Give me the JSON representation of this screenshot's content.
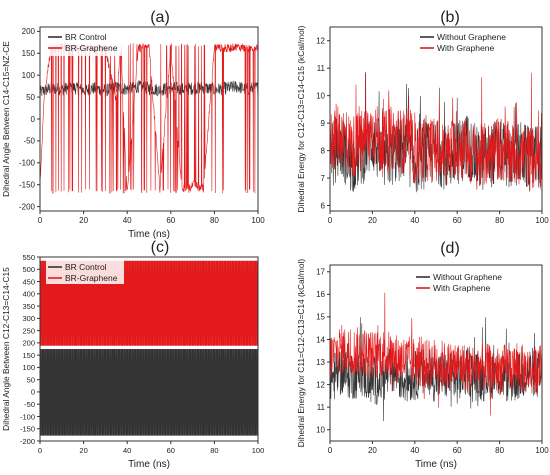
{
  "colors": {
    "black_series": "#333333",
    "red_series": "#e31a1c",
    "axis": "#333333",
    "text": "#222222"
  },
  "chart_data": [
    {
      "panel": "(a)",
      "type": "line",
      "xlabel": "Time (ns)",
      "ylabel": "Dihedral Angle Between C14-C15=NZ-CE",
      "xlim": [
        0,
        100
      ],
      "ylim": [
        -210,
        210
      ],
      "xticks": [
        0,
        20,
        40,
        60,
        80,
        100
      ],
      "yticks": [
        -200,
        -150,
        -100,
        -50,
        0,
        50,
        100,
        150,
        200
      ],
      "grid": false,
      "legend_position": "top-left",
      "series": [
        {
          "name": "BR Control",
          "color": "#333333",
          "x": [
            0,
            2,
            5,
            10,
            15,
            20,
            25,
            30,
            35,
            40,
            45,
            50,
            55,
            60,
            65,
            70,
            75,
            80,
            85,
            90,
            95,
            100
          ],
          "y": [
            60,
            65,
            70,
            68,
            72,
            66,
            70,
            65,
            72,
            68,
            74,
            70,
            66,
            72,
            68,
            70,
            72,
            67,
            70,
            74,
            68,
            72
          ]
        },
        {
          "name": "BR-Graphene",
          "color": "#e31a1c",
          "x": [
            0,
            2,
            5,
            10,
            15,
            20,
            25,
            30,
            35,
            37,
            40,
            45,
            50,
            55,
            60,
            65,
            70,
            75,
            80,
            85,
            90,
            95,
            100
          ],
          "y": [
            -150,
            60,
            160,
            165,
            160,
            165,
            162,
            160,
            40,
            165,
            -170,
            160,
            165,
            -160,
            165,
            -160,
            -150,
            -155,
            165,
            160,
            165,
            160,
            165
          ]
        }
      ]
    },
    {
      "panel": "(b)",
      "type": "line",
      "xlabel": "",
      "ylabel": "Dihedral Energy for C12-C13=C14-C15 (kCal/mol)",
      "xlim": [
        0,
        100
      ],
      "ylim": [
        5.8,
        12.5
      ],
      "xticks": [
        0,
        20,
        40,
        60,
        80,
        100
      ],
      "yticks": [
        6,
        7,
        8,
        9,
        10,
        11,
        12
      ],
      "grid": false,
      "legend_position": "top-right",
      "series": [
        {
          "name": "Without Graphene",
          "color": "#333333",
          "x": [
            0,
            5,
            10,
            15,
            20,
            25,
            30,
            35,
            40,
            45,
            50,
            55,
            60,
            65,
            70,
            75,
            80,
            85,
            90,
            95,
            100
          ],
          "y": [
            7.8,
            8.2,
            7.6,
            7.9,
            8.4,
            7.7,
            7.9,
            8.1,
            7.6,
            7.8,
            8.0,
            7.7,
            7.9,
            8.2,
            7.6,
            7.8,
            8.0,
            7.7,
            7.9,
            7.6,
            7.8
          ]
        },
        {
          "name": "With Graphene",
          "color": "#e31a1c",
          "x": [
            0,
            5,
            10,
            15,
            20,
            25,
            30,
            35,
            40,
            45,
            50,
            55,
            60,
            65,
            70,
            75,
            80,
            85,
            90,
            95,
            100
          ],
          "y": [
            8.4,
            8.6,
            8.1,
            8.3,
            8.7,
            8.2,
            8.5,
            8.3,
            7.9,
            8.1,
            8.0,
            7.8,
            8.2,
            8.0,
            7.7,
            7.9,
            8.1,
            7.8,
            7.9,
            7.7,
            7.8
          ]
        }
      ]
    },
    {
      "panel": "(c)",
      "type": "line",
      "xlabel": "Time (ns)",
      "ylabel": "Dihedral Angle Between C12-C13=C14-C15",
      "xlim": [
        0,
        100
      ],
      "ylim": [
        -200,
        550
      ],
      "xticks": [
        0,
        20,
        40,
        60,
        80,
        100
      ],
      "yticks": [
        -200,
        -150,
        -100,
        -50,
        0,
        50,
        100,
        150,
        200,
        250,
        300,
        350,
        400,
        450,
        500,
        550
      ],
      "grid": false,
      "legend_position": "top-left",
      "series": [
        {
          "name": "BR Control",
          "color": "#333333",
          "x": [
            0,
            5,
            10,
            15,
            20,
            25,
            30,
            35,
            40,
            45,
            50,
            55,
            60,
            65,
            70,
            75,
            80,
            85,
            90,
            95,
            100
          ],
          "y": [
            175,
            -175,
            175,
            -175,
            175,
            -175,
            175,
            -175,
            175,
            -175,
            175,
            -175,
            175,
            -175,
            175,
            -175,
            175,
            -175,
            175,
            -175,
            175
          ]
        },
        {
          "name": "BR-Graphene",
          "color": "#e31a1c",
          "x": [
            0,
            5,
            10,
            15,
            20,
            25,
            30,
            35,
            40,
            45,
            50,
            55,
            60,
            65,
            70,
            75,
            80,
            85,
            90,
            95,
            100
          ],
          "y": [
            185,
            535,
            185,
            535,
            185,
            535,
            185,
            535,
            185,
            535,
            185,
            535,
            185,
            535,
            185,
            535,
            185,
            535,
            185,
            535,
            185
          ]
        }
      ]
    },
    {
      "panel": "(d)",
      "type": "line",
      "xlabel": "Time (ns)",
      "ylabel": "Dihedral Energy for C11=C12-C13=C14 (kCal/mol)",
      "xlim": [
        0,
        100
      ],
      "ylim": [
        9.5,
        17.3
      ],
      "xticks": [
        0,
        20,
        40,
        60,
        80,
        100
      ],
      "yticks": [
        10,
        11,
        12,
        13,
        14,
        15,
        16,
        17
      ],
      "grid": false,
      "legend_position": "top-right",
      "series": [
        {
          "name": "Without Graphene",
          "color": "#333333",
          "x": [
            0,
            5,
            10,
            15,
            20,
            25,
            30,
            35,
            40,
            45,
            50,
            55,
            60,
            65,
            70,
            75,
            80,
            85,
            90,
            95,
            100
          ],
          "y": [
            12.2,
            12.6,
            12.4,
            12.5,
            12.1,
            12.3,
            12.6,
            12.2,
            12.4,
            12.5,
            12.3,
            12.4,
            12.2,
            12.6,
            12.3,
            12.4,
            12.5,
            12.2,
            12.4,
            12.6,
            12.3
          ]
        },
        {
          "name": "With Graphene",
          "color": "#e31a1c",
          "x": [
            0,
            5,
            10,
            15,
            20,
            25,
            30,
            35,
            40,
            45,
            50,
            55,
            60,
            65,
            70,
            75,
            80,
            85,
            90,
            95,
            100
          ],
          "y": [
            13.2,
            13.6,
            13.4,
            13.5,
            13.3,
            13.4,
            13.2,
            13.1,
            13.0,
            12.9,
            13.0,
            12.8,
            12.9,
            12.7,
            12.8,
            12.7,
            12.6,
            12.8,
            12.7,
            12.6,
            12.7
          ]
        }
      ]
    }
  ]
}
